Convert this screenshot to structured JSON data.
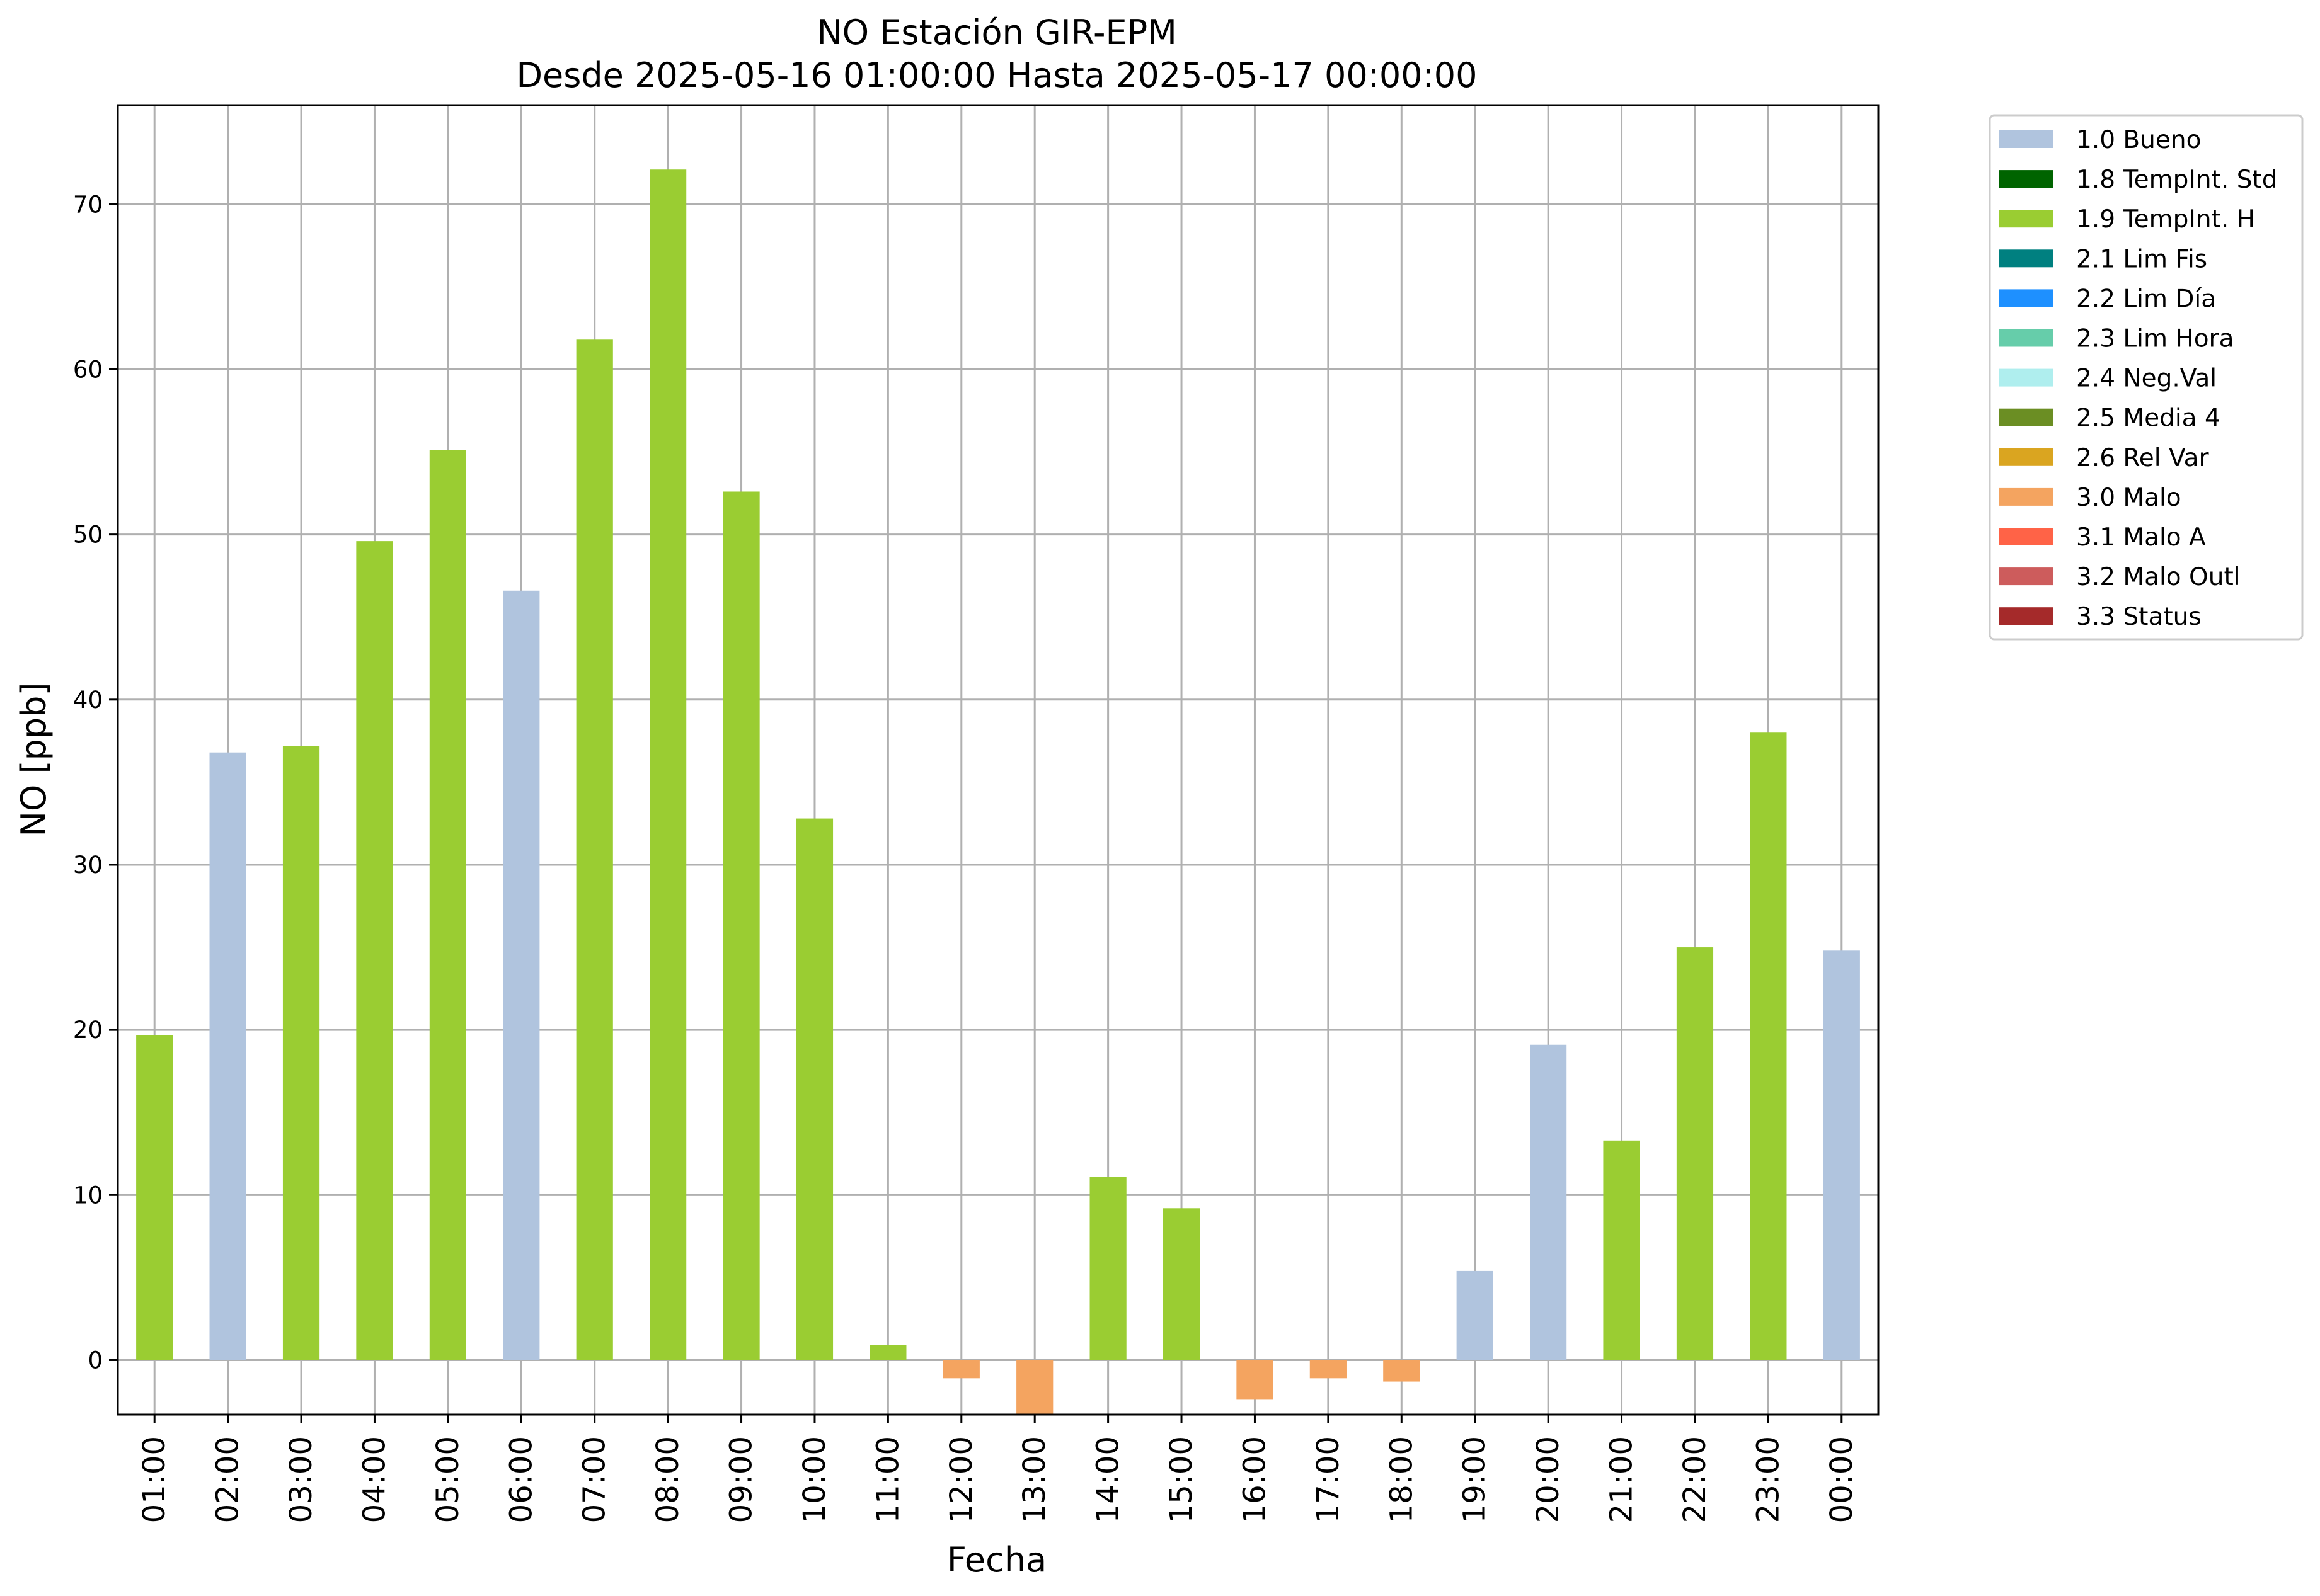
{
  "chart_data": {
    "type": "bar",
    "title": "NO Estación GIR-EPM",
    "subtitle": "Desde 2025-05-16 01:00:00 Hasta 2025-05-17 00:00:00",
    "xlabel": "Fecha",
    "ylabel": "NO [ppb]",
    "ylim": [
      -3.3,
      76
    ],
    "yticks": [
      0,
      10,
      20,
      30,
      40,
      50,
      60,
      70
    ],
    "grid": true,
    "legend_position": "outside-right",
    "categories": [
      "01:00",
      "02:00",
      "03:00",
      "04:00",
      "05:00",
      "06:00",
      "07:00",
      "08:00",
      "09:00",
      "10:00",
      "11:00",
      "12:00",
      "13:00",
      "14:00",
      "15:00",
      "16:00",
      "17:00",
      "18:00",
      "19:00",
      "20:00",
      "21:00",
      "22:00",
      "23:00",
      "00:00"
    ],
    "values": [
      19.7,
      36.8,
      37.2,
      49.6,
      55.1,
      46.6,
      61.8,
      72.1,
      52.6,
      32.8,
      0.9,
      -1.1,
      -3.4,
      11.1,
      9.2,
      -2.4,
      -1.1,
      -1.3,
      5.4,
      19.1,
      13.3,
      25.0,
      38.0,
      24.8
    ],
    "flags": [
      "1.9 TempInt. H",
      "1.0 Bueno",
      "1.9 TempInt. H",
      "1.9 TempInt. H",
      "1.9 TempInt. H",
      "1.0 Bueno",
      "1.9 TempInt. H",
      "1.9 TempInt. H",
      "1.9 TempInt. H",
      "1.9 TempInt. H",
      "1.9 TempInt. H",
      "3.0 Malo",
      "3.0 Malo",
      "1.9 TempInt. H",
      "1.9 TempInt. H",
      "3.0 Malo",
      "3.0 Malo",
      "3.0 Malo",
      "1.0 Bueno",
      "1.0 Bueno",
      "1.9 TempInt. H",
      "1.9 TempInt. H",
      "1.9 TempInt. H",
      "1.0 Bueno"
    ],
    "legend": [
      {
        "label": "1.0 Bueno",
        "color": "#b0c4de"
      },
      {
        "label": "1.8 TempInt. Std",
        "color": "#006400"
      },
      {
        "label": "1.9 TempInt. H",
        "color": "#9acd32"
      },
      {
        "label": "2.1 Lim Fis",
        "color": "#008080"
      },
      {
        "label": "2.2 Lim Día",
        "color": "#1e90ff"
      },
      {
        "label": "2.3 Lim Hora",
        "color": "#66cdaa"
      },
      {
        "label": "2.4 Neg.Val",
        "color": "#afeeee"
      },
      {
        "label": "2.5 Media 4",
        "color": "#6b8e23"
      },
      {
        "label": "2.6 Rel Var",
        "color": "#daa520"
      },
      {
        "label": "3.0 Malo",
        "color": "#f4a460"
      },
      {
        "label": "3.1 Malo A",
        "color": "#ff6347"
      },
      {
        "label": "3.2 Malo Outl",
        "color": "#cd5c5c"
      },
      {
        "label": "3.3 Status",
        "color": "#a52a2a"
      }
    ]
  }
}
